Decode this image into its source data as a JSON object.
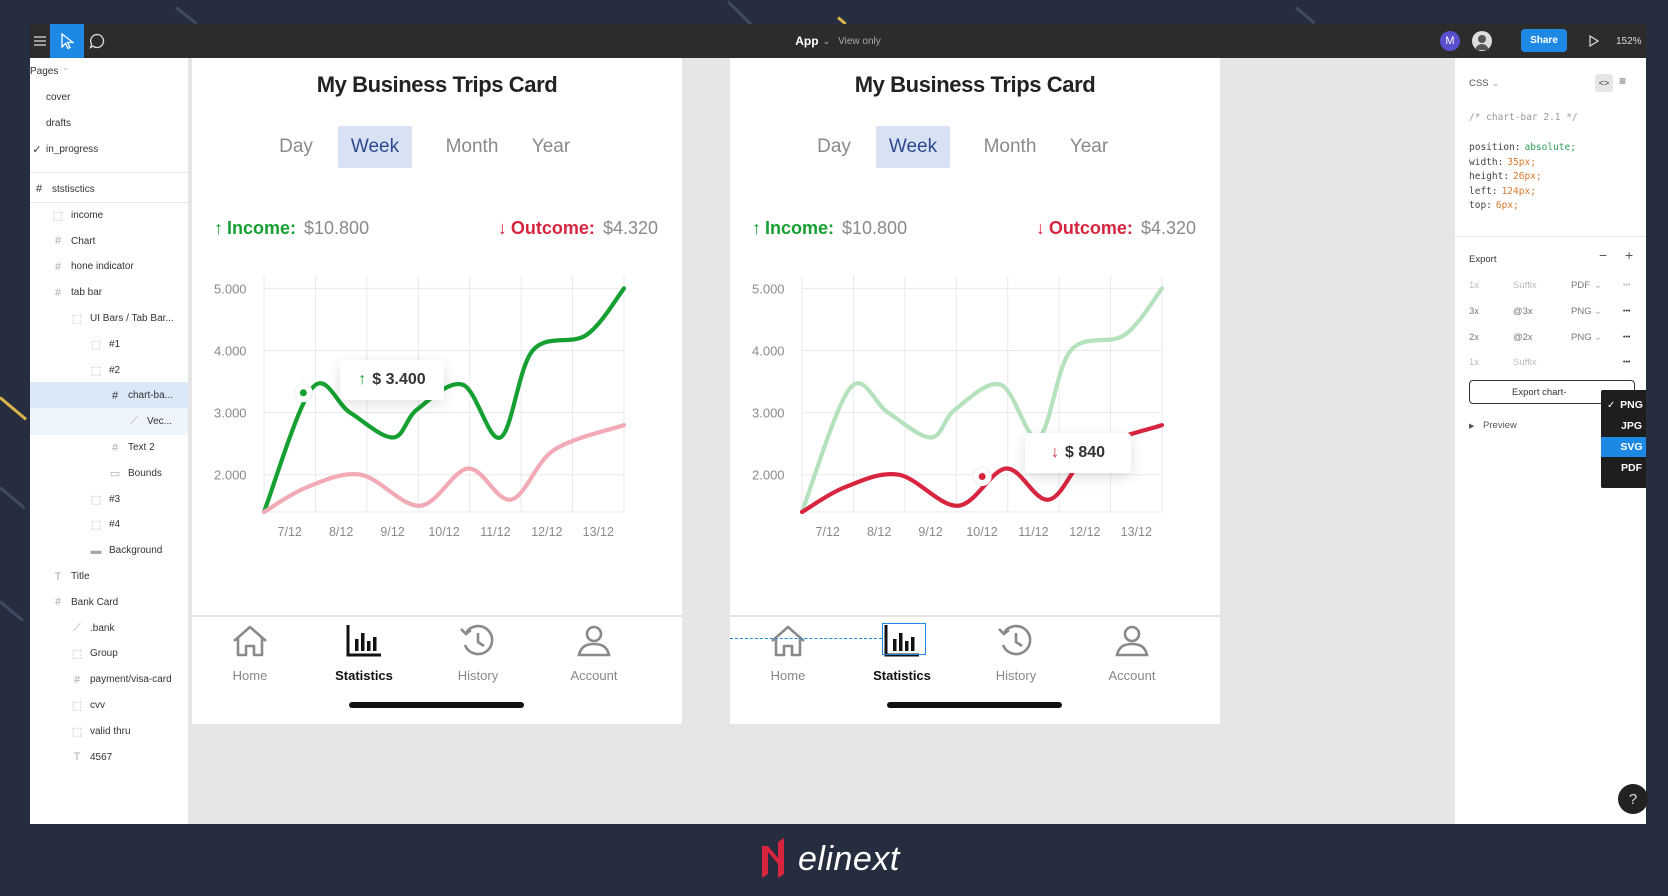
{
  "app": {
    "title": "App",
    "view_mode": "View only",
    "avatar_letter": "M",
    "share_label": "Share",
    "zoom": "152%"
  },
  "pages": {
    "header": "Pages",
    "items": [
      {
        "label": "cover",
        "checked": false
      },
      {
        "label": "drafts",
        "checked": false
      },
      {
        "label": "in_progress",
        "checked": true
      }
    ]
  },
  "layers": [
    {
      "label": "ststisctics",
      "icon": "frame",
      "indent": 0
    },
    {
      "label": "income",
      "icon": "group",
      "indent": 1
    },
    {
      "label": "Chart",
      "icon": "frame",
      "indent": 1
    },
    {
      "label": "hone indicator",
      "icon": "frame",
      "indent": 1
    },
    {
      "label": "tab bar",
      "icon": "frame",
      "indent": 1
    },
    {
      "label": "UI Bars / Tab Bar...",
      "icon": "group",
      "indent": 2
    },
    {
      "label": "#1",
      "icon": "group",
      "indent": 3
    },
    {
      "label": "#2",
      "icon": "group",
      "indent": 3
    },
    {
      "label": "chart-ba...",
      "icon": "frame",
      "indent": 4
    },
    {
      "label": "Vec...",
      "icon": "vector",
      "indent": 5
    },
    {
      "label": "Text 2",
      "icon": "frame",
      "indent": 4
    },
    {
      "label": "Bounds",
      "icon": "rect",
      "indent": 4
    },
    {
      "label": "#3",
      "icon": "group",
      "indent": 3
    },
    {
      "label": "#4",
      "icon": "group",
      "indent": 3
    },
    {
      "label": "Background",
      "icon": "line",
      "indent": 3
    },
    {
      "label": "Title",
      "icon": "text",
      "indent": 1
    },
    {
      "label": "Bank Card",
      "icon": "frame",
      "indent": 1
    },
    {
      "label": ".bank",
      "icon": "vector",
      "indent": 2
    },
    {
      "label": "Group",
      "icon": "group",
      "indent": 2
    },
    {
      "label": "payment/visa-card",
      "icon": "frame",
      "indent": 2
    },
    {
      "label": "cvv",
      "icon": "group",
      "indent": 2
    },
    {
      "label": "valid thru",
      "icon": "group",
      "indent": 2
    },
    {
      "label": "4567",
      "icon": "text",
      "indent": 2
    }
  ],
  "cards": [
    {
      "title": "My Business Trips Card",
      "tabs": [
        "Day",
        "Week",
        "Month",
        "Year"
      ],
      "active_tab": "Week",
      "income_label": "Income:",
      "income_value": "$10.800",
      "outcome_label": "Outcome:",
      "outcome_value": "$4.320",
      "tooltip": "$ 3.400",
      "highlight": "income"
    },
    {
      "title": "My Business Trips Card",
      "tabs": [
        "Day",
        "Week",
        "Month",
        "Year"
      ],
      "active_tab": "Week",
      "income_label": "Income:",
      "income_value": "$10.800",
      "outcome_label": "Outcome:",
      "outcome_value": "$4.320",
      "tooltip": "$ 840",
      "highlight": "outcome"
    }
  ],
  "nav": [
    {
      "label": "Home",
      "icon": "home-icon"
    },
    {
      "label": "Statistics",
      "icon": "bar-chart-icon",
      "active": true
    },
    {
      "label": "History",
      "icon": "history-icon"
    },
    {
      "label": "Account",
      "icon": "account-icon"
    }
  ],
  "chart_data": [
    {
      "type": "line",
      "title": "",
      "categories": [
        "7/12",
        "8/12",
        "9/12",
        "10/12",
        "11/12",
        "12/12",
        "13/12"
      ],
      "yticks": [
        "5.000",
        "4.000",
        "3.000",
        "2.000"
      ],
      "ylim": [
        1400,
        5200
      ],
      "series": [
        {
          "name": "Income",
          "color": "#16a032",
          "x": [
            0,
            0.9,
            1.6,
            2.4,
            2.85,
            3.7,
            4.4,
            5.0,
            6.0,
            6.7
          ],
          "values": [
            1400,
            3400,
            3000,
            2600,
            3050,
            3450,
            2600,
            4000,
            4250,
            5000
          ]
        },
        {
          "name": "Outcome",
          "color": "#f2aab7",
          "x": [
            0,
            0.8,
            1.8,
            2.9,
            3.8,
            4.6,
            5.4,
            6.7
          ],
          "values": [
            1400,
            1800,
            2000,
            1500,
            2100,
            1600,
            2400,
            2800
          ]
        }
      ]
    },
    {
      "type": "line",
      "title": "",
      "categories": [
        "7/12",
        "8/12",
        "9/12",
        "10/12",
        "11/12",
        "12/12",
        "13/12"
      ],
      "yticks": [
        "5.000",
        "4.000",
        "3.000",
        "2.000"
      ],
      "ylim": [
        1400,
        5200
      ],
      "series": [
        {
          "name": "Income",
          "color": "#b5e2bd",
          "x": [
            0,
            0.9,
            1.6,
            2.4,
            2.85,
            3.7,
            4.4,
            5.0,
            6.0,
            6.7
          ],
          "values": [
            1400,
            3400,
            3000,
            2600,
            3050,
            3450,
            2600,
            4000,
            4250,
            5000
          ]
        },
        {
          "name": "Outcome",
          "color": "#d8253f",
          "x": [
            0,
            0.8,
            1.8,
            2.9,
            3.8,
            4.6,
            5.4,
            6.7
          ],
          "values": [
            1400,
            1800,
            2000,
            1500,
            2100,
            1600,
            2400,
            2800
          ]
        }
      ]
    }
  ],
  "inspector": {
    "tab": "CSS",
    "css_comment": "/* chart-bar 2.1 */",
    "css_lines": [
      {
        "prop": "position:",
        "val": "absolute;"
      },
      {
        "prop": "width:",
        "val": "35px;"
      },
      {
        "prop": "height:",
        "val": "26px;"
      },
      {
        "prop": "left:",
        "val": "124px;"
      },
      {
        "prop": "top:",
        "val": "6px;"
      }
    ],
    "export_title": "Export",
    "export_rows": [
      {
        "scale": "1x",
        "suffix": "Suffix",
        "format": "PDF"
      },
      {
        "scale": "3x",
        "suffix": "@3x",
        "format": "PNG"
      },
      {
        "scale": "2x",
        "suffix": "@2x",
        "format": "PNG"
      },
      {
        "scale": "1x",
        "suffix": "Suffix",
        "format": ""
      }
    ],
    "export_button": "Export chart-",
    "preview_label": "Preview",
    "format_options": [
      "PNG",
      "JPG",
      "SVG",
      "PDF"
    ],
    "format_checked": "PNG",
    "format_highlighted": "SVG"
  },
  "help_label": "?",
  "brand": {
    "name": "elinext"
  }
}
